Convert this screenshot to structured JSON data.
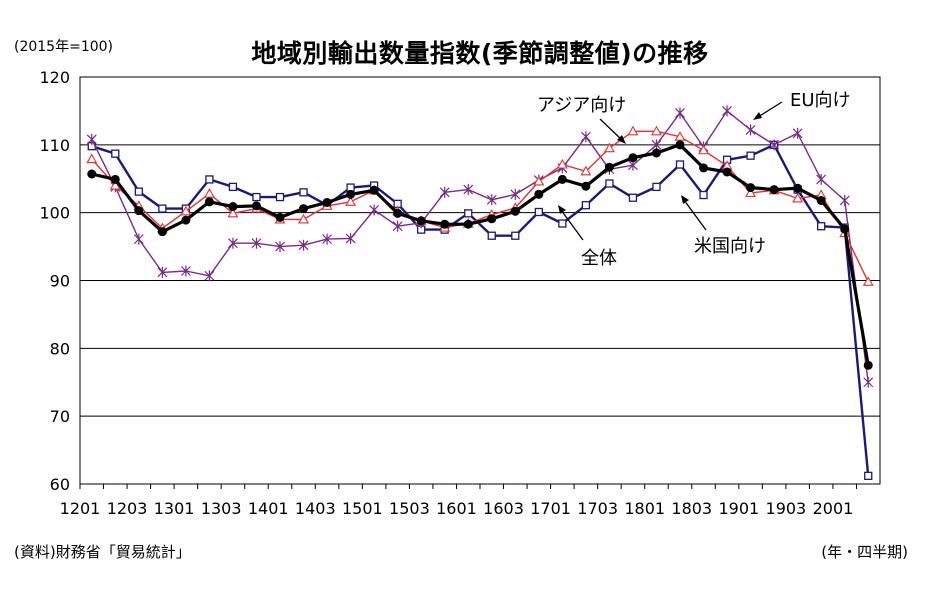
{
  "chart_data": {
    "type": "line",
    "title": "地域別輸出数量指数(季節調整値)の推移",
    "unit_label": "(2015年=100)",
    "source": "(資料)財務省「貿易統計」",
    "period_label": "(年・四半期)",
    "ylim": [
      60,
      120
    ],
    "y_ticks": [
      60,
      70,
      80,
      90,
      100,
      110,
      120
    ],
    "grid": true,
    "categories": [
      "1201",
      "1202",
      "1203",
      "1204",
      "1301",
      "1302",
      "1303",
      "1304",
      "1401",
      "1402",
      "1403",
      "1404",
      "1501",
      "1502",
      "1503",
      "1504",
      "1601",
      "1602",
      "1603",
      "1604",
      "1701",
      "1702",
      "1703",
      "1704",
      "1801",
      "1802",
      "1803",
      "1804",
      "1901",
      "1902",
      "1903",
      "1904",
      "2001",
      "2002"
    ],
    "x_tick_labels": [
      "1201",
      "1203",
      "1301",
      "1303",
      "1401",
      "1403",
      "1501",
      "1503",
      "1601",
      "1603",
      "1701",
      "1703",
      "1801",
      "1803",
      "1901",
      "1903",
      "2001"
    ],
    "series": [
      {
        "id": "us",
        "name": "米国向け",
        "color": "#1a1a7a",
        "marker": "square",
        "values": [
          109.8,
          108.7,
          103.1,
          100.6,
          100.6,
          104.9,
          103.8,
          102.3,
          102.3,
          103.0,
          101.1,
          103.7,
          104.0,
          101.3,
          97.5,
          97.5,
          99.9,
          96.6,
          96.6,
          100.1,
          98.4,
          101.1,
          104.3,
          102.2,
          103.8,
          107.1,
          102.6,
          107.8,
          108.4,
          110.0,
          103.4,
          98.0,
          97.8,
          61.2
        ]
      },
      {
        "id": "eu",
        "name": "EU向け",
        "color": "#7a2a8a",
        "marker": "star",
        "values": [
          110.8,
          103.8,
          96.1,
          91.2,
          91.4,
          90.7,
          95.5,
          95.5,
          95.0,
          95.2,
          96.1,
          96.2,
          100.4,
          98.0,
          98.5,
          103.0,
          103.4,
          101.9,
          102.7,
          104.8,
          106.6,
          111.2,
          106.4,
          107.0,
          110.0,
          114.7,
          109.7,
          115.0,
          112.2,
          110.0,
          111.7,
          104.9,
          101.8,
          75.0
        ]
      },
      {
        "id": "asia",
        "name": "アジア向け",
        "color": "#e63030",
        "marker": "triangle",
        "values": [
          107.9,
          104.0,
          101.0,
          97.7,
          100.2,
          102.8,
          99.9,
          100.6,
          99.0,
          99.0,
          101.0,
          101.6,
          103.3,
          100.2,
          98.8,
          97.8,
          98.4,
          99.7,
          100.7,
          104.6,
          107.1,
          106.1,
          109.5,
          112.0,
          112.0,
          111.2,
          109.2,
          106.9,
          102.9,
          103.3,
          102.1,
          102.6,
          97.0,
          89.8
        ]
      },
      {
        "id": "total",
        "name": "全体",
        "color": "#000000",
        "marker": "circle",
        "values": [
          105.7,
          104.9,
          100.3,
          97.2,
          98.9,
          101.6,
          100.9,
          101.0,
          99.3,
          100.6,
          101.5,
          102.7,
          103.3,
          99.9,
          98.8,
          98.3,
          98.3,
          99.1,
          100.2,
          102.7,
          104.9,
          103.9,
          106.7,
          108.1,
          108.8,
          110.0,
          106.6,
          106.0,
          103.7,
          103.4,
          103.6,
          101.8,
          97.6,
          77.5
        ]
      }
    ]
  },
  "annotations": [
    {
      "label": "アジア向け",
      "target": "asia"
    },
    {
      "label": "EU向け",
      "target": "eu"
    },
    {
      "label": "全体",
      "target": "total"
    },
    {
      "label": "米国向け",
      "target": "us"
    }
  ]
}
